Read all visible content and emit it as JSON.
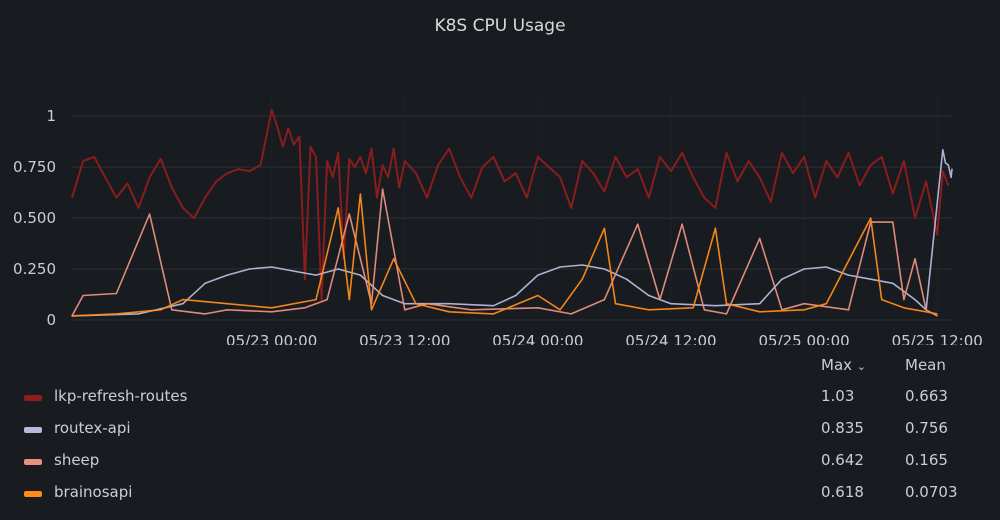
{
  "panel": {
    "title": "K8S CPU Usage",
    "background": "#181b1f",
    "grid_color": "#2c3036"
  },
  "legend": {
    "headers": {
      "max": "Max",
      "max_sort_icon": "chevron-down-icon",
      "mean": "Mean"
    },
    "rows": [
      {
        "name": "lkp-refresh-routes",
        "color": "#8f1d1d",
        "max": "1.03",
        "mean": "0.663"
      },
      {
        "name": "routex-api",
        "color": "#b8b8dc",
        "max": "0.835",
        "mean": "0.756"
      },
      {
        "name": "sheep",
        "color": "#e8917f",
        "max": "0.642",
        "mean": "0.165"
      },
      {
        "name": "brainosapi",
        "color": "#ff8c1a",
        "max": "0.618",
        "mean": "0.0703"
      }
    ]
  },
  "chart_data": {
    "type": "line",
    "title": "K8S CPU Usage",
    "xlabel": "",
    "ylabel": "",
    "x_range": [
      "05/22 06:00",
      "05/25 13:20"
    ],
    "x_ticks": [
      "05/23 00:00",
      "05/23 12:00",
      "05/24 00:00",
      "05/24 12:00",
      "05/25 00:00",
      "05/25 12:00"
    ],
    "y_ticks": [
      "0",
      "0.250",
      "0.500",
      "0.750",
      "1"
    ],
    "ylim": [
      0,
      1.03
    ],
    "grid": true,
    "legend_position": "bottom",
    "series": [
      {
        "name": "lkp-refresh-routes",
        "color": "#8f1d1d",
        "points": [
          [
            "05/22 06:00",
            0.6
          ],
          [
            "05/22 07:00",
            0.78
          ],
          [
            "05/22 08:00",
            0.8
          ],
          [
            "05/22 09:00",
            0.7
          ],
          [
            "05/22 10:00",
            0.6
          ],
          [
            "05/22 11:00",
            0.67
          ],
          [
            "05/22 12:00",
            0.55
          ],
          [
            "05/22 13:00",
            0.7
          ],
          [
            "05/22 14:00",
            0.79
          ],
          [
            "05/22 15:00",
            0.65
          ],
          [
            "05/22 16:00",
            0.55
          ],
          [
            "05/22 17:00",
            0.5
          ],
          [
            "05/22 18:00",
            0.6
          ],
          [
            "05/22 19:00",
            0.68
          ],
          [
            "05/22 20:00",
            0.72
          ],
          [
            "05/22 21:00",
            0.74
          ],
          [
            "05/22 22:00",
            0.73
          ],
          [
            "05/22 23:00",
            0.76
          ],
          [
            "05/23 00:00",
            1.03
          ],
          [
            "05/23 00:30",
            0.95
          ],
          [
            "05/23 01:00",
            0.85
          ],
          [
            "05/23 01:30",
            0.94
          ],
          [
            "05/23 02:00",
            0.86
          ],
          [
            "05/23 02:30",
            0.9
          ],
          [
            "05/23 03:00",
            0.2
          ],
          [
            "05/23 03:30",
            0.85
          ],
          [
            "05/23 04:00",
            0.8
          ],
          [
            "05/23 04:30",
            0.1
          ],
          [
            "05/23 05:00",
            0.78
          ],
          [
            "05/23 05:30",
            0.7
          ],
          [
            "05/23 06:00",
            0.82
          ],
          [
            "05/23 06:30",
            0.3
          ],
          [
            "05/23 07:00",
            0.79
          ],
          [
            "05/23 07:30",
            0.75
          ],
          [
            "05/23 08:00",
            0.8
          ],
          [
            "05/23 08:30",
            0.72
          ],
          [
            "05/23 09:00",
            0.84
          ],
          [
            "05/23 09:30",
            0.6
          ],
          [
            "05/23 10:00",
            0.76
          ],
          [
            "05/23 10:30",
            0.7
          ],
          [
            "05/23 11:00",
            0.84
          ],
          [
            "05/23 11:30",
            0.65
          ],
          [
            "05/23 12:00",
            0.78
          ],
          [
            "05/23 13:00",
            0.72
          ],
          [
            "05/23 14:00",
            0.6
          ],
          [
            "05/23 15:00",
            0.76
          ],
          [
            "05/23 16:00",
            0.84
          ],
          [
            "05/23 17:00",
            0.7
          ],
          [
            "05/23 18:00",
            0.6
          ],
          [
            "05/23 19:00",
            0.75
          ],
          [
            "05/23 20:00",
            0.8
          ],
          [
            "05/23 21:00",
            0.68
          ],
          [
            "05/23 22:00",
            0.72
          ],
          [
            "05/23 23:00",
            0.6
          ],
          [
            "05/24 00:00",
            0.8
          ],
          [
            "05/24 01:00",
            0.75
          ],
          [
            "05/24 02:00",
            0.7
          ],
          [
            "05/24 03:00",
            0.55
          ],
          [
            "05/24 04:00",
            0.78
          ],
          [
            "05/24 05:00",
            0.72
          ],
          [
            "05/24 06:00",
            0.63
          ],
          [
            "05/24 07:00",
            0.8
          ],
          [
            "05/24 08:00",
            0.7
          ],
          [
            "05/24 09:00",
            0.74
          ],
          [
            "05/24 10:00",
            0.6
          ],
          [
            "05/24 11:00",
            0.8
          ],
          [
            "05/24 12:00",
            0.73
          ],
          [
            "05/24 13:00",
            0.82
          ],
          [
            "05/24 14:00",
            0.7
          ],
          [
            "05/24 15:00",
            0.6
          ],
          [
            "05/24 16:00",
            0.55
          ],
          [
            "05/24 17:00",
            0.82
          ],
          [
            "05/24 18:00",
            0.68
          ],
          [
            "05/24 19:00",
            0.78
          ],
          [
            "05/24 20:00",
            0.7
          ],
          [
            "05/24 21:00",
            0.58
          ],
          [
            "05/24 22:00",
            0.82
          ],
          [
            "05/24 23:00",
            0.72
          ],
          [
            "05/25 00:00",
            0.8
          ],
          [
            "05/25 01:00",
            0.6
          ],
          [
            "05/25 02:00",
            0.78
          ],
          [
            "05/25 03:00",
            0.7
          ],
          [
            "05/25 04:00",
            0.82
          ],
          [
            "05/25 05:00",
            0.66
          ],
          [
            "05/25 06:00",
            0.76
          ],
          [
            "05/25 07:00",
            0.8
          ],
          [
            "05/25 08:00",
            0.62
          ],
          [
            "05/25 09:00",
            0.78
          ],
          [
            "05/25 10:00",
            0.5
          ],
          [
            "05/25 11:00",
            0.68
          ],
          [
            "05/25 12:00",
            0.42
          ],
          [
            "05/25 12:30",
            0.73
          ],
          [
            "05/25 13:00",
            0.66
          ]
        ]
      },
      {
        "name": "routex-api",
        "color": "#b8b8dc",
        "points": [
          [
            "05/22 06:00",
            0.02
          ],
          [
            "05/22 12:00",
            0.03
          ],
          [
            "05/22 16:00",
            0.08
          ],
          [
            "05/22 18:00",
            0.18
          ],
          [
            "05/22 20:00",
            0.22
          ],
          [
            "05/22 22:00",
            0.25
          ],
          [
            "05/23 00:00",
            0.26
          ],
          [
            "05/23 02:00",
            0.24
          ],
          [
            "05/23 04:00",
            0.22
          ],
          [
            "05/23 06:00",
            0.25
          ],
          [
            "05/23 08:00",
            0.22
          ],
          [
            "05/23 10:00",
            0.12
          ],
          [
            "05/23 12:00",
            0.08
          ],
          [
            "05/23 16:00",
            0.08
          ],
          [
            "05/23 20:00",
            0.07
          ],
          [
            "05/23 22:00",
            0.12
          ],
          [
            "05/24 00:00",
            0.22
          ],
          [
            "05/24 02:00",
            0.26
          ],
          [
            "05/24 04:00",
            0.27
          ],
          [
            "05/24 06:00",
            0.25
          ],
          [
            "05/24 08:00",
            0.2
          ],
          [
            "05/24 10:00",
            0.12
          ],
          [
            "05/24 12:00",
            0.08
          ],
          [
            "05/24 16:00",
            0.07
          ],
          [
            "05/24 20:00",
            0.08
          ],
          [
            "05/24 22:00",
            0.2
          ],
          [
            "05/25 00:00",
            0.25
          ],
          [
            "05/25 02:00",
            0.26
          ],
          [
            "05/25 04:00",
            0.22
          ],
          [
            "05/25 06:00",
            0.2
          ],
          [
            "05/25 08:00",
            0.18
          ],
          [
            "05/25 10:00",
            0.1
          ],
          [
            "05/25 11:00",
            0.05
          ],
          [
            "05/25 12:30",
            0.835
          ],
          [
            "05/25 12:45",
            0.77
          ],
          [
            "05/25 13:00",
            0.76
          ],
          [
            "05/25 13:15",
            0.7
          ],
          [
            "05/25 13:20",
            0.74
          ]
        ]
      },
      {
        "name": "sheep",
        "color": "#e8917f",
        "points": [
          [
            "05/22 06:00",
            0.02
          ],
          [
            "05/22 07:00",
            0.12
          ],
          [
            "05/22 10:00",
            0.13
          ],
          [
            "05/22 13:00",
            0.52
          ],
          [
            "05/22 15:00",
            0.05
          ],
          [
            "05/22 18:00",
            0.03
          ],
          [
            "05/22 20:00",
            0.05
          ],
          [
            "05/23 00:00",
            0.04
          ],
          [
            "05/23 03:00",
            0.06
          ],
          [
            "05/23 05:00",
            0.1
          ],
          [
            "05/23 07:00",
            0.52
          ],
          [
            "05/23 09:00",
            0.08
          ],
          [
            "05/23 10:00",
            0.642
          ],
          [
            "05/23 12:00",
            0.05
          ],
          [
            "05/23 14:00",
            0.08
          ],
          [
            "05/23 18:00",
            0.05
          ],
          [
            "05/24 00:00",
            0.06
          ],
          [
            "05/24 03:00",
            0.03
          ],
          [
            "05/24 06:00",
            0.1
          ],
          [
            "05/24 09:00",
            0.47
          ],
          [
            "05/24 11:00",
            0.1
          ],
          [
            "05/24 13:00",
            0.47
          ],
          [
            "05/24 15:00",
            0.05
          ],
          [
            "05/24 17:00",
            0.03
          ],
          [
            "05/24 20:00",
            0.4
          ],
          [
            "05/24 22:00",
            0.05
          ],
          [
            "05/25 00:00",
            0.08
          ],
          [
            "05/25 04:00",
            0.05
          ],
          [
            "05/25 06:00",
            0.48
          ],
          [
            "05/25 08:00",
            0.48
          ],
          [
            "05/25 09:00",
            0.1
          ],
          [
            "05/25 10:00",
            0.3
          ],
          [
            "05/25 11:00",
            0.05
          ],
          [
            "05/25 12:00",
            0.02
          ]
        ]
      },
      {
        "name": "brainosapi",
        "color": "#ff8c1a",
        "points": [
          [
            "05/22 06:00",
            0.02
          ],
          [
            "05/22 10:00",
            0.03
          ],
          [
            "05/22 14:00",
            0.05
          ],
          [
            "05/22 16:00",
            0.1
          ],
          [
            "05/22 20:00",
            0.08
          ],
          [
            "05/23 00:00",
            0.06
          ],
          [
            "05/23 04:00",
            0.1
          ],
          [
            "05/23 06:00",
            0.55
          ],
          [
            "05/23 07:00",
            0.1
          ],
          [
            "05/23 08:00",
            0.618
          ],
          [
            "05/23 09:00",
            0.05
          ],
          [
            "05/23 11:00",
            0.3
          ],
          [
            "05/23 13:00",
            0.08
          ],
          [
            "05/23 16:00",
            0.04
          ],
          [
            "05/23 20:00",
            0.03
          ],
          [
            "05/24 00:00",
            0.12
          ],
          [
            "05/24 02:00",
            0.05
          ],
          [
            "05/24 04:00",
            0.2
          ],
          [
            "05/24 06:00",
            0.45
          ],
          [
            "05/24 07:00",
            0.08
          ],
          [
            "05/24 10:00",
            0.05
          ],
          [
            "05/24 14:00",
            0.06
          ],
          [
            "05/24 16:00",
            0.45
          ],
          [
            "05/24 17:00",
            0.08
          ],
          [
            "05/24 20:00",
            0.04
          ],
          [
            "05/25 00:00",
            0.05
          ],
          [
            "05/25 02:00",
            0.08
          ],
          [
            "05/25 06:00",
            0.5
          ],
          [
            "05/25 07:00",
            0.1
          ],
          [
            "05/25 09:00",
            0.06
          ],
          [
            "05/25 12:00",
            0.03
          ]
        ]
      }
    ]
  }
}
